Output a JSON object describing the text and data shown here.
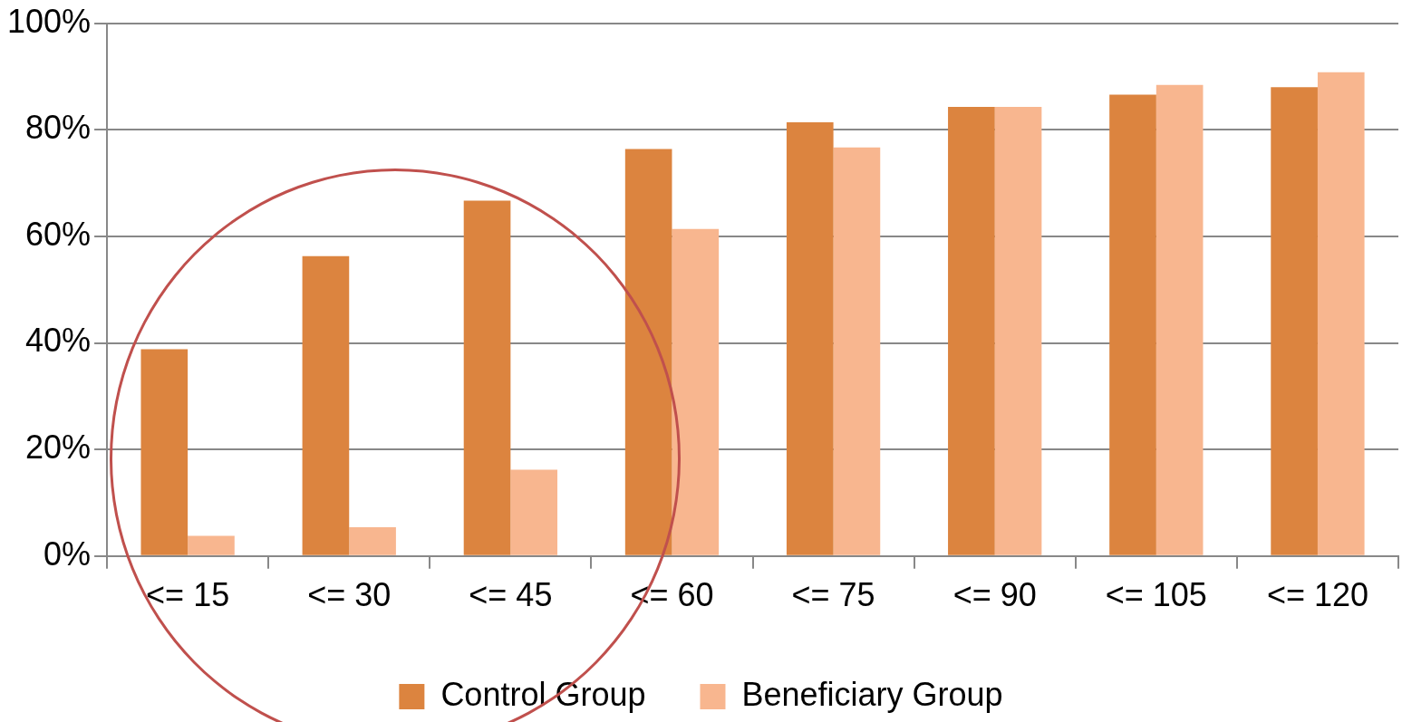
{
  "chart_data": {
    "type": "bar",
    "categories": [
      "<= 15",
      "<= 30",
      "<= 45",
      "<= 60",
      "<= 75",
      "<= 90",
      "<= 105",
      "<= 120"
    ],
    "series": [
      {
        "name": "Control Group",
        "color": "#dc843f",
        "values": [
          38.8,
          56.3,
          66.7,
          76.4,
          81.4,
          84.3,
          86.6,
          88.0
        ]
      },
      {
        "name": "Beneficiary Group",
        "color": "#f8b68f",
        "values": [
          3.8,
          5.4,
          16.2,
          61.4,
          76.7,
          84.3,
          88.4,
          90.8
        ]
      }
    ],
    "ylim": [
      0,
      100
    ],
    "yticks": [
      {
        "value": 0,
        "label": "0%"
      },
      {
        "value": 20,
        "label": "20%"
      },
      {
        "value": 40,
        "label": "40%"
      },
      {
        "value": 60,
        "label": "60%"
      },
      {
        "value": 80,
        "label": "80%"
      },
      {
        "value": 100,
        "label": "100%"
      }
    ],
    "grid": "y",
    "legend": "bottom"
  }
}
